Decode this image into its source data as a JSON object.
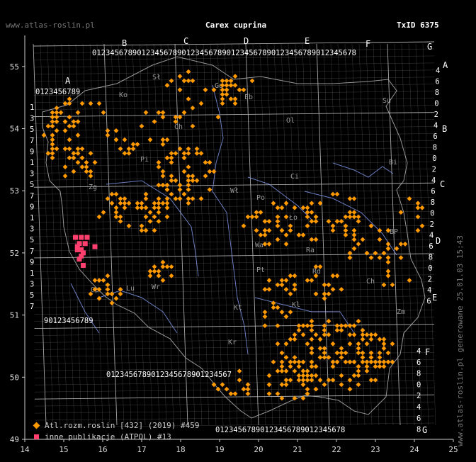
{
  "header": {
    "site": "www.atlas-roslin.pl",
    "species": "Carex cuprina",
    "txid": "TxID 6375"
  },
  "generated": "www.atlas-roslin.pl generowane 25.01.03 15:43",
  "legend": {
    "atlas": "Atl.rozm.roslin [432] (2019) #459",
    "other": "inne publikacje (ATPOL) #13"
  },
  "axes": {
    "x_ticks": [
      "14",
      "15",
      "16",
      "17",
      "18",
      "19",
      "20",
      "21",
      "22",
      "23",
      "24",
      "25"
    ],
    "y_ticks": [
      "55",
      "54",
      "53",
      "52",
      "51",
      "50",
      "49"
    ]
  },
  "atpol": {
    "columns": [
      "A",
      "B",
      "C",
      "D",
      "E",
      "F",
      "G"
    ],
    "rows": [
      "A",
      "B",
      "C",
      "D",
      "E",
      "F",
      "G"
    ],
    "squares": [
      "Sł",
      "Ko",
      "Gd",
      "Eb",
      "Ol",
      "Su",
      "Ch",
      "Pi",
      "Bi",
      "Ci",
      "Wł",
      "Po",
      "Zg",
      "Ło",
      "Wa",
      "BP",
      "Pt",
      "Ra",
      "Lu",
      "Wr",
      "Kl",
      "Ch",
      "Op",
      "Kt",
      "Rd",
      "Zm",
      "Kr"
    ]
  },
  "colors": {
    "atlas": "#ff9900",
    "other": "#ff3f6e",
    "grid": "#888888",
    "river": "#8ea6ff",
    "border": "#bbbbbb"
  },
  "map_data": {
    "atlas_count": 459,
    "other_count": 13,
    "other_points": [
      [
        15.3,
        52.25
      ],
      [
        15.45,
        52.25
      ],
      [
        15.6,
        52.25
      ],
      [
        15.8,
        52.1
      ],
      [
        15.35,
        52.05
      ],
      [
        15.45,
        51.95
      ],
      [
        15.5,
        51.8
      ],
      [
        15.35,
        52.1
      ],
      [
        15.4,
        52.15
      ],
      [
        15.55,
        52.15
      ],
      [
        15.45,
        52.05
      ],
      [
        15.4,
        51.9
      ],
      [
        15.5,
        52.0
      ]
    ]
  }
}
